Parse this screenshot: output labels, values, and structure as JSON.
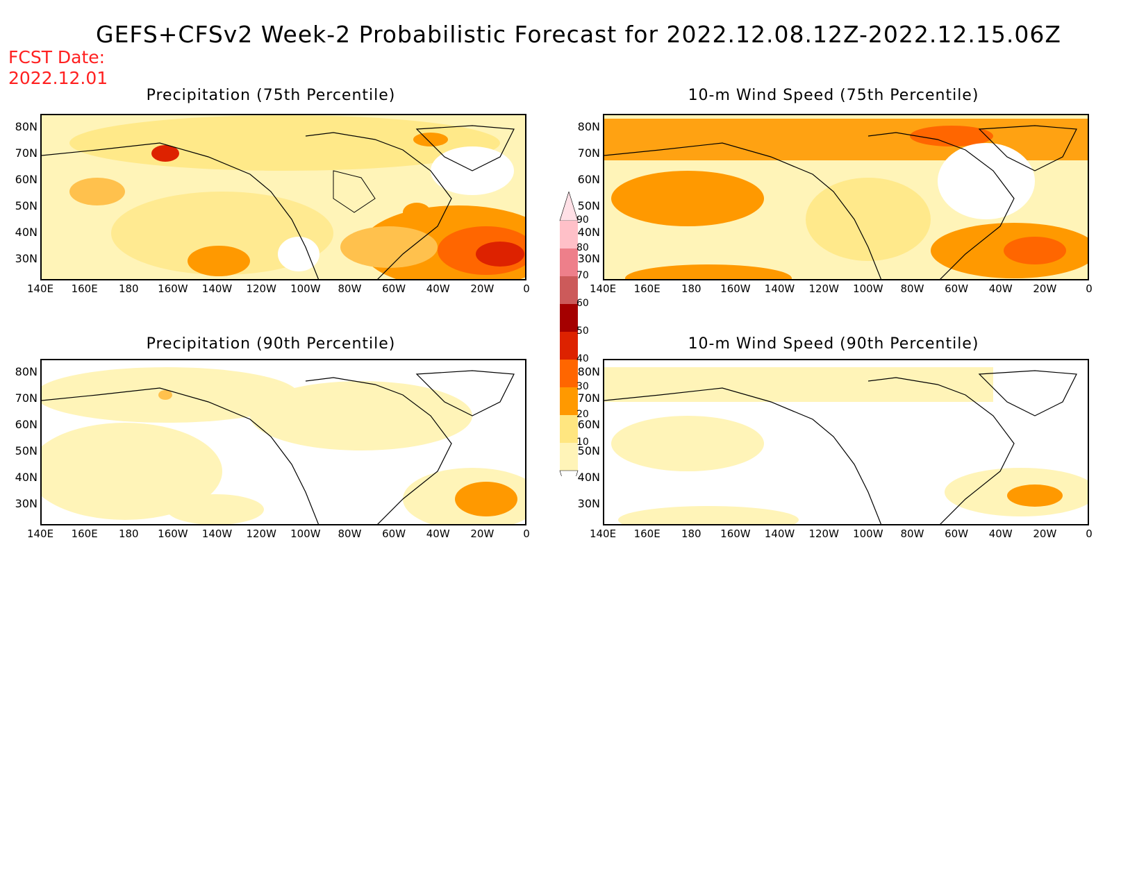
{
  "title": "GEFS+CFSv2 Week-2 Probabilistic Forecast for 2022.12.08.12Z-2022.12.15.06Z",
  "fcst_label_line1": "FCST Date:",
  "fcst_label_line2": "2022.12.01",
  "panels": [
    {
      "title": "Precipitation (75th Percentile)"
    },
    {
      "title": "10-m Wind Speed (75th Percentile)"
    },
    {
      "title": "Precipitation (90th Percentile)"
    },
    {
      "title": "10-m Wind Speed (90th Percentile)"
    }
  ],
  "lat_labels": [
    "80N",
    "70N",
    "60N",
    "50N",
    "40N",
    "30N"
  ],
  "lon_labels": [
    "140E",
    "160E",
    "180",
    "160W",
    "140W",
    "120W",
    "100W",
    "80W",
    "60W",
    "40W",
    "20W",
    "0"
  ],
  "colorbar": {
    "levels": [
      "90",
      "80",
      "70",
      "60",
      "50",
      "40",
      "30",
      "20",
      "10"
    ],
    "colors": [
      "#ffc0c8",
      "#ee7f8a",
      "#cc5a5a",
      "#a50000",
      "#dd2200",
      "#ff6600",
      "#ff9900",
      "#ffe680",
      "#fff4b8"
    ]
  }
}
